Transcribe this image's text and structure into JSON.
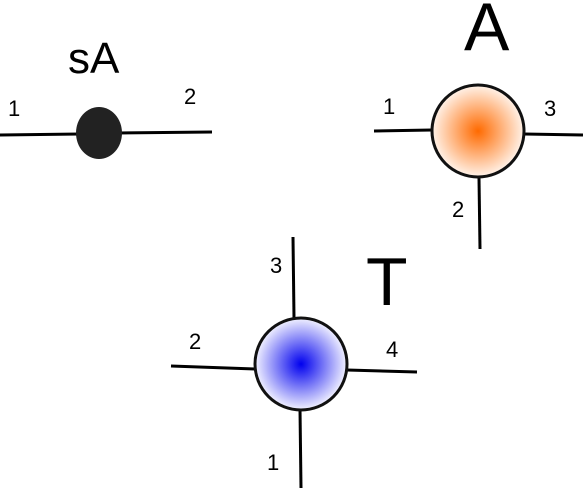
{
  "tensor_sa": {
    "title": "sA",
    "node_color": "#222222",
    "ports": [
      "1",
      "2"
    ]
  },
  "tensor_a": {
    "title": "A",
    "gradient_center": "#ff6a00",
    "gradient_edge": "#fff3ea",
    "ports": [
      "1",
      "2",
      "3"
    ]
  },
  "tensor_t": {
    "title": "T",
    "gradient_center": "#0000ee",
    "gradient_edge": "#f2f2ff",
    "ports": [
      "1",
      "2",
      "3",
      "4"
    ]
  }
}
